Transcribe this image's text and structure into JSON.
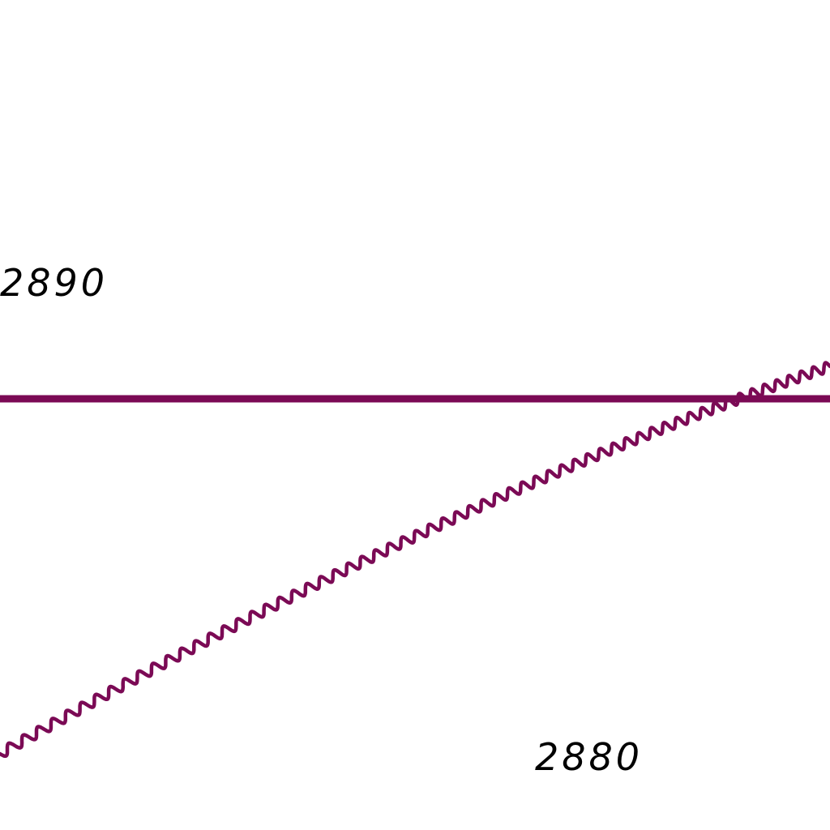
{
  "map": {
    "line_color": "#7b0a55",
    "label_color": "#000000",
    "background": "#ffffff",
    "contour_labels": {
      "upper": "2890",
      "lower": "2880"
    },
    "features": [
      {
        "kind": "straight-line",
        "name": "boundary-line"
      },
      {
        "kind": "wavy-line",
        "name": "wavy-boundary-line"
      }
    ]
  }
}
